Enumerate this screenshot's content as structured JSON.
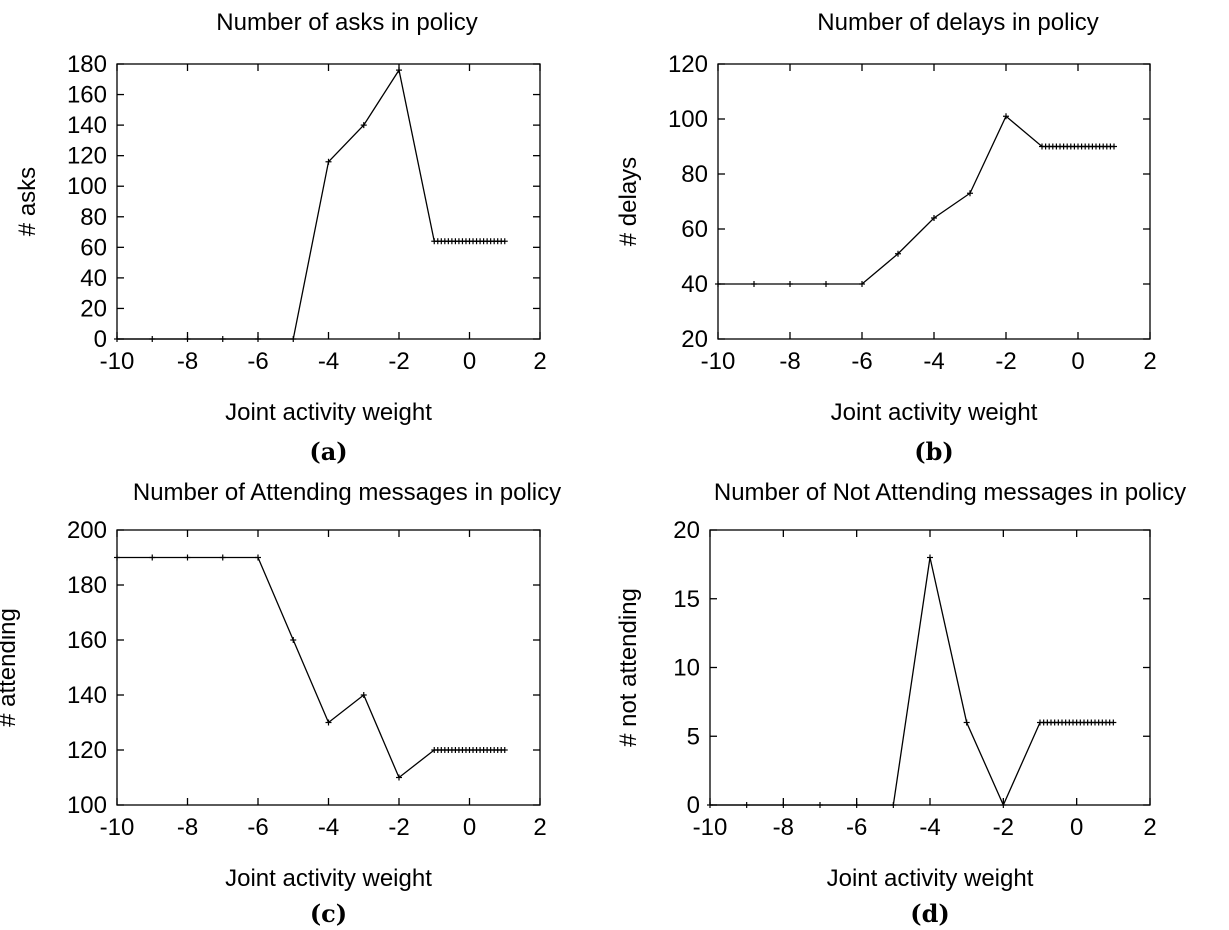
{
  "chart_data": [
    {
      "type": "line",
      "caption": "(a)",
      "title": "Number of asks in policy",
      "xlabel": "Joint activity weight",
      "ylabel": "# asks",
      "xlim": [
        -10,
        2
      ],
      "ylim": [
        0,
        180
      ],
      "xticks": [
        -10,
        -8,
        -6,
        -4,
        -2,
        0,
        2
      ],
      "yticks": [
        0,
        20,
        40,
        60,
        80,
        100,
        120,
        140,
        160,
        180
      ],
      "x": [
        -10,
        -9,
        -8,
        -7,
        -6,
        -5,
        -4,
        -3,
        -2,
        -1,
        -0.9,
        -0.8,
        -0.7,
        -0.6,
        -0.5,
        -0.4,
        -0.3,
        -0.2,
        -0.1,
        0,
        0.1,
        0.2,
        0.3,
        0.4,
        0.5,
        0.6,
        0.7,
        0.8,
        0.9,
        1
      ],
      "y": [
        0,
        0,
        0,
        0,
        0,
        0,
        116,
        140,
        176,
        64,
        64,
        64,
        64,
        64,
        64,
        64,
        64,
        64,
        64,
        64,
        64,
        64,
        64,
        64,
        64,
        64,
        64,
        64,
        64,
        64
      ]
    },
    {
      "type": "line",
      "caption": "(b)",
      "title": "Number of delays in policy",
      "xlabel": "Joint activity weight",
      "ylabel": "# delays",
      "xlim": [
        -10,
        2
      ],
      "ylim": [
        20,
        120
      ],
      "xticks": [
        -10,
        -8,
        -6,
        -4,
        -2,
        0,
        2
      ],
      "yticks": [
        20,
        40,
        60,
        80,
        100,
        120
      ],
      "x": [
        -10,
        -9,
        -8,
        -7,
        -6,
        -5,
        -4,
        -3,
        -2,
        -1,
        -0.9,
        -0.8,
        -0.7,
        -0.6,
        -0.5,
        -0.4,
        -0.3,
        -0.2,
        -0.1,
        0,
        0.1,
        0.2,
        0.3,
        0.4,
        0.5,
        0.6,
        0.7,
        0.8,
        0.9,
        1
      ],
      "y": [
        40,
        40,
        40,
        40,
        40,
        51,
        64,
        73,
        101,
        90,
        90,
        90,
        90,
        90,
        90,
        90,
        90,
        90,
        90,
        90,
        90,
        90,
        90,
        90,
        90,
        90,
        90,
        90,
        90,
        90
      ]
    },
    {
      "type": "line",
      "caption": "(c)",
      "title": "Number of Attending messages in policy",
      "xlabel": "Joint activity weight",
      "ylabel": "# attending",
      "xlim": [
        -10,
        2
      ],
      "ylim": [
        100,
        200
      ],
      "xticks": [
        -10,
        -8,
        -6,
        -4,
        -2,
        0,
        2
      ],
      "yticks": [
        100,
        120,
        140,
        160,
        180,
        200
      ],
      "x": [
        -10,
        -9,
        -8,
        -7,
        -6,
        -5,
        -4,
        -3,
        -2,
        -1,
        -0.9,
        -0.8,
        -0.7,
        -0.6,
        -0.5,
        -0.4,
        -0.3,
        -0.2,
        -0.1,
        0,
        0.1,
        0.2,
        0.3,
        0.4,
        0.5,
        0.6,
        0.7,
        0.8,
        0.9,
        1
      ],
      "y": [
        190,
        190,
        190,
        190,
        190,
        160,
        130,
        140,
        110,
        120,
        120,
        120,
        120,
        120,
        120,
        120,
        120,
        120,
        120,
        120,
        120,
        120,
        120,
        120,
        120,
        120,
        120,
        120,
        120,
        120
      ]
    },
    {
      "type": "line",
      "caption": "(d)",
      "title": "Number of Not Attending messages in policy",
      "xlabel": "Joint activity weight",
      "ylabel": "# not attending",
      "xlim": [
        -10,
        2
      ],
      "ylim": [
        0,
        20
      ],
      "xticks": [
        -10,
        -8,
        -6,
        -4,
        -2,
        0,
        2
      ],
      "yticks": [
        0,
        5,
        10,
        15,
        20
      ],
      "x": [
        -10,
        -9,
        -8,
        -7,
        -6,
        -5,
        -4,
        -3,
        -2,
        -1,
        -0.9,
        -0.8,
        -0.7,
        -0.6,
        -0.5,
        -0.4,
        -0.3,
        -0.2,
        -0.1,
        0,
        0.1,
        0.2,
        0.3,
        0.4,
        0.5,
        0.6,
        0.7,
        0.8,
        0.9,
        1
      ],
      "y": [
        0,
        0,
        0,
        0,
        0,
        0,
        18,
        6,
        0,
        6,
        6,
        6,
        6,
        6,
        6,
        6,
        6,
        6,
        6,
        6,
        6,
        6,
        6,
        6,
        6,
        6,
        6,
        6,
        6,
        6
      ]
    }
  ]
}
